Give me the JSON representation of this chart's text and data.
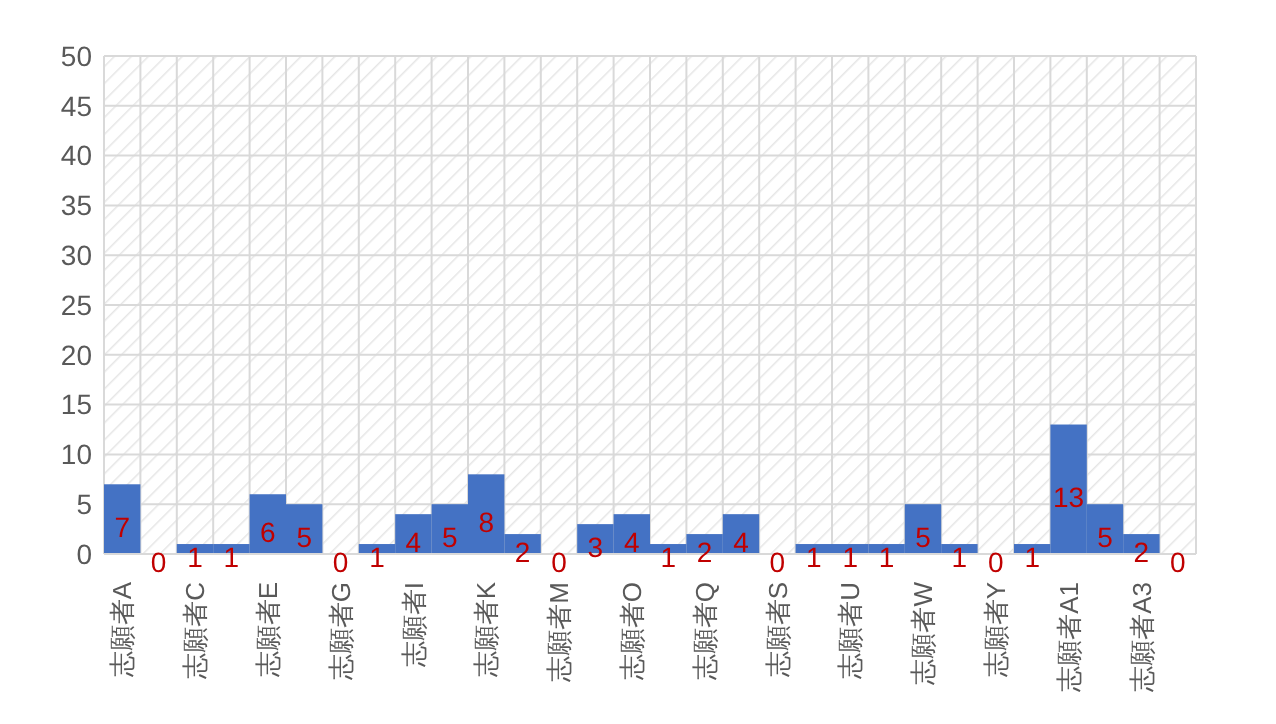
{
  "chart_data": {
    "type": "bar",
    "categories": [
      "志願者A",
      null,
      "志願者C",
      null,
      "志願者E",
      null,
      "志願者G",
      null,
      "志願者I",
      null,
      "志願者K",
      null,
      "志願者M",
      null,
      "志願者O",
      null,
      "志願者Q",
      null,
      "志願者S",
      null,
      "志願者U",
      null,
      "志願者W",
      null,
      "志願者Y",
      null,
      "志願者A1",
      null,
      "志願者A3",
      null
    ],
    "values": [
      7,
      0,
      1,
      1,
      6,
      5,
      0,
      1,
      4,
      5,
      8,
      2,
      0,
      3,
      4,
      1,
      2,
      4,
      0,
      1,
      1,
      1,
      5,
      1,
      0,
      1,
      13,
      5,
      2,
      0
    ],
    "color": "#4472c4",
    "data_labels": true,
    "ylim": [
      0,
      50
    ],
    "yticks": [
      0,
      5,
      10,
      15,
      20,
      25,
      30,
      35,
      40,
      45,
      50
    ],
    "grid": true
  }
}
